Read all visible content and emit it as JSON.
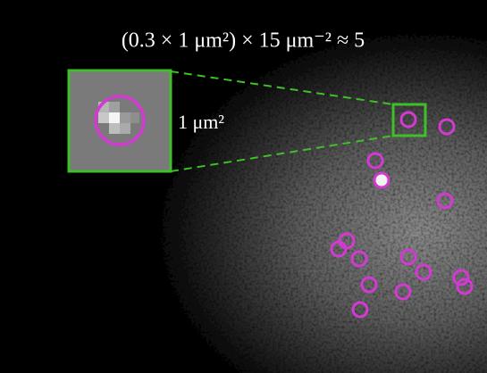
{
  "title": "(0.3 × 1 μm²) × 15 μm⁻² ≈ 5",
  "inset_label": "1 μm²"
}
